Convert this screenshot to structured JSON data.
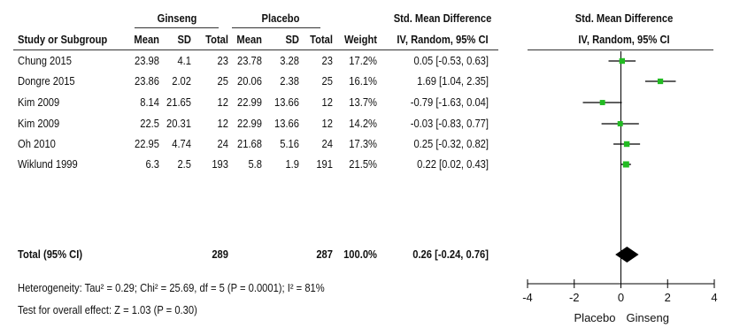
{
  "header": {
    "group1": "Ginseng",
    "group2": "Placebo",
    "effect_title": "Std. Mean Difference",
    "effect_method": "IV, Random, 95% CI",
    "plot_title": "Std. Mean Difference",
    "plot_method": "IV, Random, 95% CI",
    "col_study": "Study or Subgroup",
    "col_mean": "Mean",
    "col_sd": "SD",
    "col_total": "Total",
    "col_weight": "Weight"
  },
  "rows": [
    {
      "study": "Chung 2015",
      "g_mean": "23.98",
      "g_sd": "4.1",
      "g_total": "23",
      "p_mean": "23.78",
      "p_sd": "3.28",
      "p_total": "23",
      "weight": "17.2%",
      "ci_text": "0.05 [-0.53, 0.63]"
    },
    {
      "study": "Dongre 2015",
      "g_mean": "23.86",
      "g_sd": "2.02",
      "g_total": "25",
      "p_mean": "20.06",
      "p_sd": "2.38",
      "p_total": "25",
      "weight": "16.1%",
      "ci_text": "1.69 [1.04, 2.35]"
    },
    {
      "study": "Kim 2009",
      "g_mean": "8.14",
      "g_sd": "21.65",
      "g_total": "12",
      "p_mean": "22.99",
      "p_sd": "13.66",
      "p_total": "12",
      "weight": "13.7%",
      "ci_text": "-0.79 [-1.63, 0.04]"
    },
    {
      "study": "Kim 2009",
      "g_mean": "22.5",
      "g_sd": "20.31",
      "g_total": "12",
      "p_mean": "22.99",
      "p_sd": "13.66",
      "p_total": "12",
      "weight": "14.2%",
      "ci_text": "-0.03 [-0.83, 0.77]"
    },
    {
      "study": "Oh 2010",
      "g_mean": "22.95",
      "g_sd": "4.74",
      "g_total": "24",
      "p_mean": "21.68",
      "p_sd": "5.16",
      "p_total": "24",
      "weight": "17.3%",
      "ci_text": "0.25 [-0.32, 0.82]"
    },
    {
      "study": "Wiklund 1999",
      "g_mean": "6.3",
      "g_sd": "2.5",
      "g_total": "193",
      "p_mean": "5.8",
      "p_sd": "1.9",
      "p_total": "191",
      "weight": "21.5%",
      "ci_text": "0.22 [0.02, 0.43]"
    }
  ],
  "total": {
    "label": "Total (95% CI)",
    "g_total": "289",
    "p_total": "287",
    "weight": "100.0%",
    "ci_text": "0.26 [-0.24, 0.76]"
  },
  "footer": {
    "heterogeneity": "Heterogeneity: Tau² = 0.29; Chi² = 25.69, df = 5 (P = 0.0001); I² = 81%",
    "overall": "Test for overall effect: Z = 1.03 (P = 0.30)"
  },
  "colors": {
    "marker": "#22bb22",
    "diamond": "#000000",
    "line": "#000000"
  },
  "chart_data": {
    "type": "scatter",
    "title": "Std. Mean Difference",
    "subtitle": "IV, Random, 95% CI",
    "xlim": [
      -4,
      4
    ],
    "xticks": [
      -4,
      -2,
      0,
      2,
      4
    ],
    "xtick_labels": [
      "-4",
      "-2",
      "0",
      "2",
      "4"
    ],
    "favours_left": "Placebo",
    "favours_right": "Ginseng",
    "studies": [
      {
        "name": "Chung 2015",
        "est": 0.05,
        "lo": -0.53,
        "hi": 0.63,
        "weight": 17.2
      },
      {
        "name": "Dongre 2015",
        "est": 1.69,
        "lo": 1.04,
        "hi": 2.35,
        "weight": 16.1
      },
      {
        "name": "Kim 2009",
        "est": -0.79,
        "lo": -1.63,
        "hi": 0.04,
        "weight": 13.7
      },
      {
        "name": "Kim 2009",
        "est": -0.03,
        "lo": -0.83,
        "hi": 0.77,
        "weight": 14.2
      },
      {
        "name": "Oh 2010",
        "est": 0.25,
        "lo": -0.32,
        "hi": 0.82,
        "weight": 17.3
      },
      {
        "name": "Wiklund 1999",
        "est": 0.22,
        "lo": 0.02,
        "hi": 0.43,
        "weight": 21.5
      }
    ],
    "overall": {
      "est": 0.26,
      "lo": -0.24,
      "hi": 0.76
    }
  }
}
